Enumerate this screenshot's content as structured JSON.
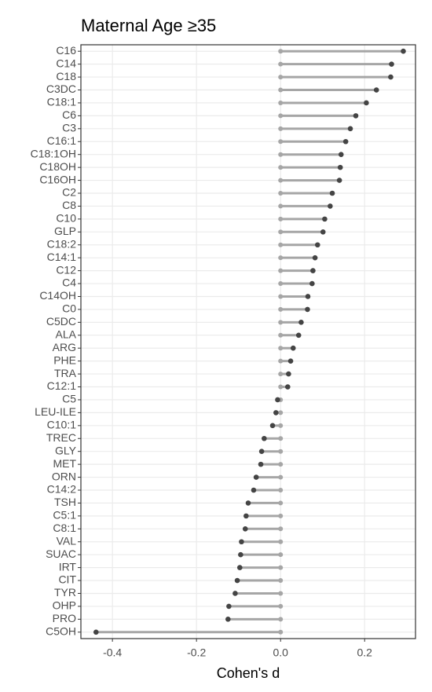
{
  "chart_data": {
    "type": "lollipop",
    "title": "Maternal Age ≥35",
    "x_label": "Cohen's d",
    "categories": [
      "C16",
      "C14",
      "C18",
      "C3DC",
      "C18:1",
      "C6",
      "C3",
      "C16:1",
      "C18:1OH",
      "C18OH",
      "C16OH",
      "C2",
      "C8",
      "C10",
      "GLP",
      "C18:2",
      "C14:1",
      "C12",
      "C4",
      "C14OH",
      "C0",
      "C5DC",
      "ALA",
      "ARG",
      "PHE",
      "TRA",
      "C12:1",
      "C5",
      "LEU-ILE",
      "C10:1",
      "TREC",
      "GLY",
      "MET",
      "ORN",
      "C14:2",
      "TSH",
      "C5:1",
      "C8:1",
      "VAL",
      "SUAC",
      "IRT",
      "CIT",
      "TYR",
      "OHP",
      "PRO",
      "C5OH"
    ],
    "values": [
      0.292,
      0.264,
      0.262,
      0.228,
      0.204,
      0.179,
      0.166,
      0.155,
      0.144,
      0.142,
      0.14,
      0.123,
      0.118,
      0.105,
      0.101,
      0.088,
      0.082,
      0.077,
      0.075,
      0.065,
      0.064,
      0.049,
      0.043,
      0.03,
      0.024,
      0.019,
      0.017,
      -0.007,
      -0.011,
      -0.019,
      -0.039,
      -0.045,
      -0.047,
      -0.058,
      -0.064,
      -0.077,
      -0.082,
      -0.084,
      -0.093,
      -0.095,
      -0.097,
      -0.103,
      -0.108,
      -0.123,
      -0.125,
      -0.439
    ],
    "color": "#444444",
    "stem_color": "#a6a6a6",
    "xlim": [
      -0.475,
      0.321
    ],
    "xticks": [
      -0.4,
      -0.2,
      {
        "value": 0,
        "label": "0.0"
      },
      0.2
    ],
    "grid": true
  }
}
